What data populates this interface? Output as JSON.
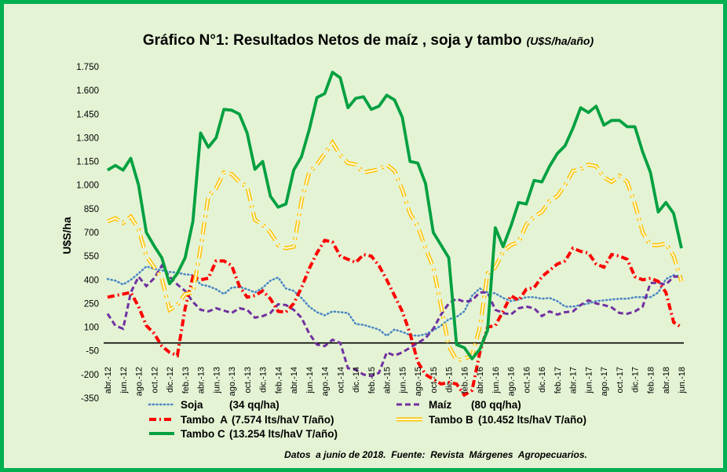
{
  "colors": {
    "frame": "#00b050",
    "background": "#e4f3d4",
    "soja": "#4a86c5",
    "maiz": "#7030a0",
    "tambo_a": "#ff0000",
    "tambo_b": "#ffc000",
    "tambo_c": "#00a040"
  },
  "chart_data": {
    "type": "line",
    "title": "Gráfico N°1: Resultados Netos de maíz , soja y tambo",
    "title_unit": "(U$S/ha/año)",
    "ylabel": "U$S/ha",
    "xlabel": "",
    "ylim": [
      -350,
      1750
    ],
    "yticks": [
      1750,
      1600,
      1450,
      1300,
      1150,
      1000,
      850,
      700,
      550,
      400,
      250,
      100,
      -50,
      -200,
      -350
    ],
    "ytick_labels": [
      "1.750",
      "1.600",
      "1.450",
      "1.300",
      "1.150",
      "1.000",
      "850",
      "700",
      "550",
      "400",
      "250",
      "100",
      "-50",
      "-200",
      "-350"
    ],
    "zero_line": 0,
    "grid": false,
    "legend_position": "bottom",
    "x": [
      "abr.-12",
      "may.-12",
      "jun.-12",
      "jul.-12",
      "ago.-12",
      "sep.-12",
      "oct.-12",
      "nov.-12",
      "dic.-12",
      "ene.-13",
      "feb.-13",
      "mar.-13",
      "abr.-13",
      "may.-13",
      "jun.-13",
      "jul.-13",
      "ago.-13",
      "sep.-13",
      "oct.-13",
      "nov.-13",
      "dic.-13",
      "ene.-14",
      "feb.-14",
      "mar.-14",
      "abr.-14",
      "may.-14",
      "jun.-14",
      "jul.-14",
      "ago.-14",
      "sep.-14",
      "oct.-14",
      "nov.-14",
      "dic.-14",
      "ene.-15",
      "feb.-15",
      "mar.-15",
      "abr.-15",
      "may.-15",
      "jun.-15",
      "jul.-15",
      "ago.-15",
      "sep.-15",
      "oct.-15",
      "nov.-15",
      "dic.-15",
      "ene.-16",
      "feb.-16",
      "mar.-16",
      "abr.-16",
      "may.-16",
      "jun.-16",
      "jul.-16",
      "ago.-16",
      "sep.-16",
      "oct.-16",
      "nov.-16",
      "dic.-16",
      "ene.-17",
      "feb.-17",
      "mar.-17",
      "abr.-17",
      "may.-17",
      "jun.-17",
      "jul.-17",
      "ago.-17",
      "sep.-17",
      "oct.-17",
      "nov.-17",
      "dic.-17",
      "ene.-18",
      "feb.-18",
      "mar.-18",
      "abr.-18",
      "may.-18",
      "jun.-18"
    ],
    "x_labels": [
      "abr.-12",
      "jun.-12",
      "ago.-12",
      "oct.-12",
      "dic.-12",
      "feb.-13",
      "abr.-13",
      "jun.-13",
      "ago.-13",
      "oct.-13",
      "dic.-13",
      "feb.-14",
      "abr.-14",
      "jun.-14",
      "ago.-14",
      "oct.-14",
      "dic.-14",
      "feb.-15",
      "abr.-15",
      "jun.-15",
      "ago.-15",
      "oct.-15",
      "dic.-15",
      "feb.-16",
      "abr.-16",
      "jun.-16",
      "ago.-16",
      "oct.-16",
      "dic.-16",
      "feb.-17",
      "abr.-17",
      "jun.-17",
      "ago.-17",
      "oct.-17",
      "dic.-17",
      "feb.-18",
      "abr.-18",
      "jun.-18"
    ],
    "series": [
      {
        "key": "soja",
        "name": "Soja",
        "legend_detail": "(34 qq/ha)",
        "style": "dotted",
        "values": [
          405,
          395,
          370,
          400,
          440,
          485,
          470,
          460,
          450,
          445,
          435,
          430,
          370,
          360,
          340,
          310,
          350,
          355,
          340,
          320,
          350,
          395,
          415,
          345,
          330,
          285,
          230,
          195,
          175,
          200,
          195,
          190,
          120,
          115,
          100,
          85,
          45,
          85,
          70,
          50,
          45,
          55,
          80,
          110,
          150,
          165,
          200,
          300,
          345,
          320,
          315,
          285,
          265,
          275,
          290,
          290,
          280,
          285,
          265,
          230,
          230,
          240,
          250,
          265,
          270,
          275,
          280,
          280,
          290,
          290,
          290,
          320,
          405,
          430,
          420
        ]
      },
      {
        "key": "maiz",
        "name": "Maíz",
        "legend_detail": "(80 qq/ha)",
        "style": "dashed",
        "values": [
          185,
          110,
          90,
          320,
          420,
          360,
          410,
          490,
          420,
          370,
          330,
          260,
          210,
          200,
          220,
          205,
          190,
          220,
          210,
          160,
          170,
          190,
          245,
          240,
          210,
          160,
          60,
          -10,
          -20,
          20,
          0,
          -160,
          -170,
          -200,
          -210,
          -190,
          -60,
          -80,
          -60,
          -30,
          0,
          30,
          90,
          180,
          250,
          280,
          260,
          270,
          320,
          320,
          210,
          190,
          180,
          220,
          230,
          220,
          170,
          200,
          180,
          195,
          200,
          240,
          270,
          250,
          240,
          225,
          190,
          185,
          200,
          230,
          380,
          380,
          370,
          420,
          420
        ]
      },
      {
        "key": "tambo_a",
        "name": "Tambo  A",
        "legend_detail": "(7.574 lts/haV T/año)",
        "style": "dash-dot",
        "values": [
          290,
          300,
          310,
          320,
          230,
          110,
          60,
          -20,
          -60,
          -80,
          220,
          420,
          400,
          410,
          520,
          520,
          490,
          360,
          290,
          300,
          330,
          280,
          200,
          195,
          250,
          350,
          470,
          570,
          650,
          640,
          550,
          530,
          510,
          560,
          550,
          490,
          400,
          300,
          200,
          60,
          -120,
          -200,
          -230,
          -260,
          -250,
          -260,
          -330,
          -300,
          -60,
          100,
          110,
          200,
          300,
          270,
          340,
          350,
          420,
          460,
          500,
          520,
          600,
          580,
          570,
          500,
          480,
          560,
          550,
          530,
          420,
          400,
          410,
          390,
          320,
          130,
          100
        ]
      },
      {
        "key": "tambo_b",
        "name": "Tambo B",
        "legend_detail": "(10.452 lts/haV T/año)",
        "style": "hollow",
        "values": [
          770,
          790,
          760,
          800,
          720,
          550,
          480,
          410,
          210,
          240,
          310,
          320,
          600,
          930,
          980,
          1080,
          1070,
          1020,
          990,
          780,
          750,
          700,
          620,
          600,
          610,
          900,
          1080,
          1130,
          1200,
          1270,
          1190,
          1140,
          1130,
          1080,
          1090,
          1100,
          1130,
          1090,
          970,
          820,
          740,
          600,
          480,
          230,
          -20,
          -110,
          -100,
          -80,
          100,
          440,
          480,
          580,
          620,
          640,
          750,
          800,
          830,
          900,
          930,
          1000,
          1090,
          1100,
          1130,
          1120,
          1050,
          1020,
          1060,
          1020,
          880,
          700,
          620,
          620,
          630,
          550,
          390
        ]
      },
      {
        "key": "tambo_c",
        "name": "Tambo C",
        "legend_detail": "(13.254 lts/haV T/año)",
        "style": "solid",
        "values": [
          1095,
          1125,
          1095,
          1170,
          1000,
          700,
          615,
          540,
          375,
          440,
          540,
          770,
          1330,
          1240,
          1300,
          1480,
          1475,
          1450,
          1330,
          1100,
          1150,
          930,
          860,
          880,
          1095,
          1180,
          1350,
          1555,
          1580,
          1715,
          1680,
          1490,
          1550,
          1560,
          1480,
          1500,
          1570,
          1540,
          1430,
          1150,
          1140,
          1010,
          700,
          620,
          540,
          -10,
          -30,
          -100,
          -40,
          80,
          730,
          610,
          740,
          890,
          880,
          1030,
          1020,
          1120,
          1200,
          1250,
          1360,
          1490,
          1460,
          1500,
          1380,
          1410,
          1410,
          1370,
          1370,
          1210,
          1080,
          830,
          890,
          820,
          600
        ]
      }
    ]
  },
  "note": "Datos  a junio de 2018.  Fuente:  Revista  Márgenes  Agropecuarios."
}
